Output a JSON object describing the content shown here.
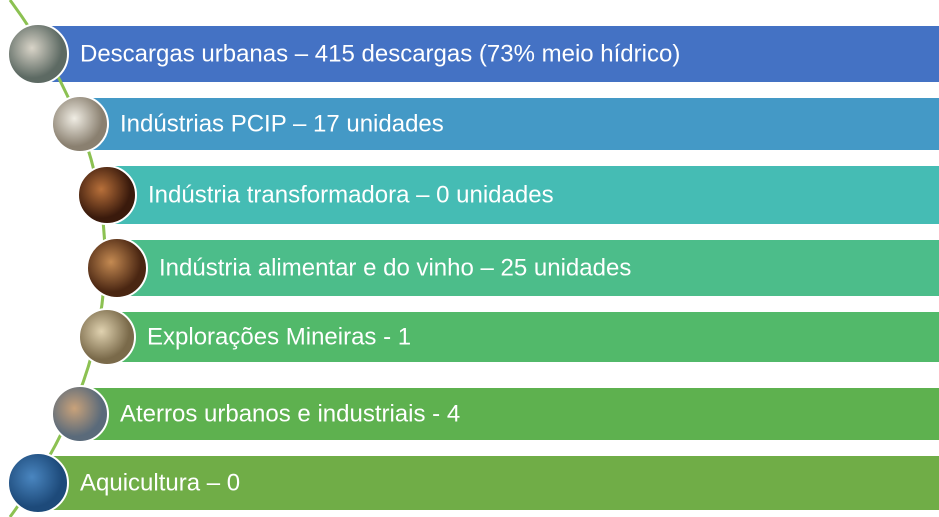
{
  "items": [
    {
      "label": "Descargas urbanas – 415 descargas (73% meio hídrico)"
    },
    {
      "label": "Indústrias PCIP – 17 unidades"
    },
    {
      "label": "Indústria transformadora – 0 unidades"
    },
    {
      "label": "Indústria alimentar e do vinho – 25 unidades"
    },
    {
      "label": "Explorações Mineiras - 1"
    },
    {
      "label": "Aterros urbanos e industriais - 4"
    },
    {
      "label": "Aquicultura – 0"
    }
  ]
}
